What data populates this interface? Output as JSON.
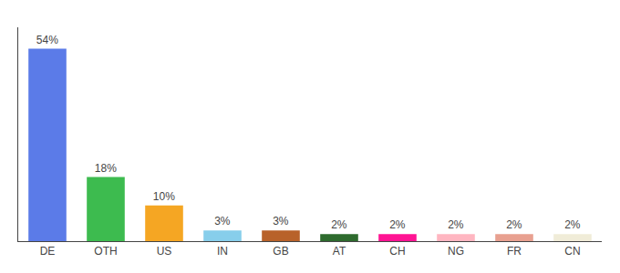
{
  "chart_data": {
    "type": "bar",
    "categories": [
      "DE",
      "OTH",
      "US",
      "IN",
      "GB",
      "AT",
      "CH",
      "NG",
      "FR",
      "CN"
    ],
    "values": [
      54,
      18,
      10,
      3,
      3,
      2,
      2,
      2,
      2,
      2
    ],
    "value_labels": [
      "54%",
      "18%",
      "10%",
      "3%",
      "3%",
      "2%",
      "2%",
      "2%",
      "2%",
      "2%"
    ],
    "colors": [
      "#5b7be8",
      "#3dbb4f",
      "#f5a623",
      "#87ceeb",
      "#b8622a",
      "#2e6b2e",
      "#ff1493",
      "#ffb6c1",
      "#e8a090",
      "#f0ecd8"
    ],
    "ylim": [
      0,
      60
    ],
    "data_labels": true,
    "tick_labels": "x",
    "grid": false
  }
}
